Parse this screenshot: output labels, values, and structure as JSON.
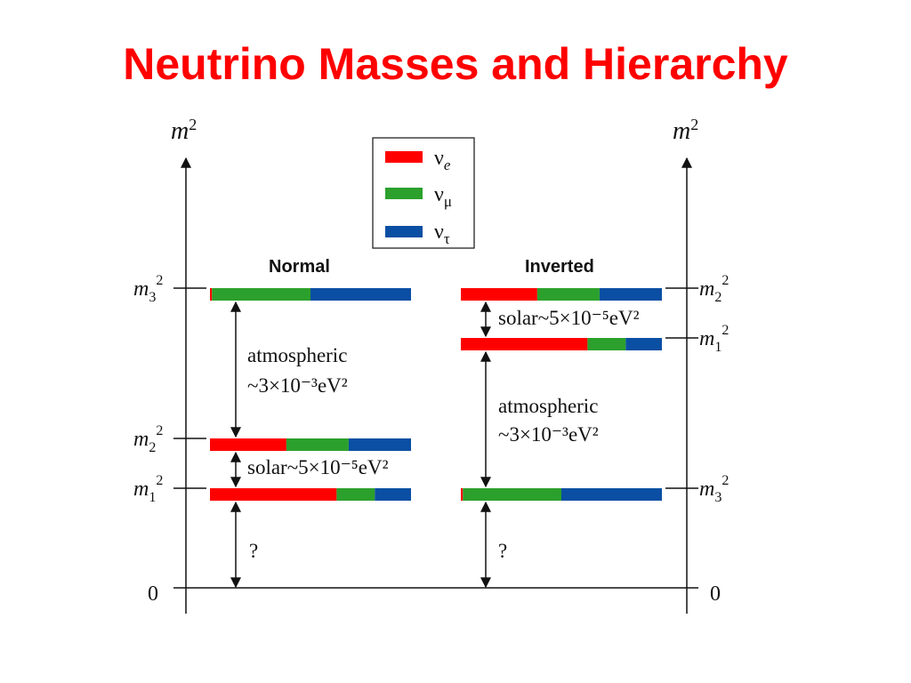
{
  "title": "Neutrino Masses and Hierarchy",
  "colors": {
    "nu_e": "#ff0000",
    "nu_mu": "#2ca02c",
    "nu_tau": "#0a4fa3",
    "title": "#ff0000"
  },
  "axes": {
    "label": "m",
    "label_sup": "2",
    "zero": "0"
  },
  "legend": [
    {
      "symbol": "ν",
      "sub": "e",
      "color": "#ff0000"
    },
    {
      "symbol": "ν",
      "sub": "μ",
      "color": "#2ca02c"
    },
    {
      "symbol": "ν",
      "sub": "τ",
      "color": "#0a4fa3"
    }
  ],
  "normal": {
    "label": "Normal",
    "levels": [
      {
        "name": "m3",
        "label_base": "m",
        "label_sub": "3",
        "label_sup": "2",
        "fractions": [
          0.01,
          0.49,
          0.5
        ]
      },
      {
        "name": "m2",
        "label_base": "m",
        "label_sub": "2",
        "label_sup": "2",
        "fractions": [
          0.38,
          0.31,
          0.31
        ]
      },
      {
        "name": "m1",
        "label_base": "m",
        "label_sub": "1",
        "label_sup": "2",
        "fractions": [
          0.63,
          0.19,
          0.18
        ]
      }
    ],
    "gaps": {
      "atmospheric": {
        "line1": "atmospheric",
        "line2": "~3×10⁻³eV²"
      },
      "solar": "solar~5×10⁻⁵eV²",
      "unknown": "?"
    }
  },
  "inverted": {
    "label": "Inverted",
    "levels": [
      {
        "name": "m2",
        "label_base": "m",
        "label_sub": "2",
        "label_sup": "2",
        "fractions": [
          0.38,
          0.31,
          0.31
        ]
      },
      {
        "name": "m1",
        "label_base": "m",
        "label_sub": "1",
        "label_sup": "2",
        "fractions": [
          0.63,
          0.19,
          0.18
        ]
      },
      {
        "name": "m3",
        "label_base": "m",
        "label_sub": "3",
        "label_sup": "2",
        "fractions": [
          0.01,
          0.49,
          0.5
        ]
      }
    ],
    "gaps": {
      "solar": "solar~5×10⁻⁵eV²",
      "atmospheric": {
        "line1": "atmospheric",
        "line2": "~3×10⁻³eV²"
      },
      "unknown": "?"
    }
  }
}
